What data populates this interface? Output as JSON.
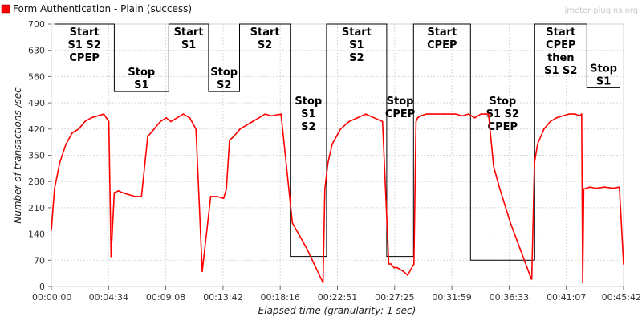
{
  "watermark": "jmeter-plugins.org",
  "chart_data": {
    "type": "line",
    "title": "",
    "xlabel": "Elapsed time (granularity: 1 sec)",
    "ylabel": "Number of transactions /sec",
    "xlim": [
      0,
      2730
    ],
    "ylim": [
      0,
      700
    ],
    "grid": true,
    "legend_position": "top-left",
    "x_ticks": [
      "00:00:00",
      "00:04:34",
      "00:09:08",
      "00:13:42",
      "00:18:16",
      "00:22:51",
      "00:27:25",
      "00:31:59",
      "00:36:33",
      "00:41:07",
      "00:45:42"
    ],
    "y_ticks": [
      0,
      70,
      140,
      210,
      280,
      350,
      420,
      490,
      560,
      630,
      700
    ],
    "series": [
      {
        "name": "Form Authentication - Plain (success)",
        "color": "#ff0000",
        "x": [
          0,
          15,
          40,
          70,
          100,
          130,
          160,
          190,
          220,
          250,
          274,
          285,
          300,
          320,
          340,
          370,
          400,
          430,
          460,
          490,
          520,
          548,
          570,
          600,
          630,
          660,
          690,
          720,
          760,
          790,
          822,
          835,
          850,
          870,
          900,
          930,
          960,
          990,
          1020,
          1050,
          1096,
          1150,
          1220,
          1296,
          1305,
          1320,
          1340,
          1380,
          1420,
          1460,
          1500,
          1540,
          1580,
          1610,
          1620,
          1635,
          1650,
          1680,
          1700,
          1730,
          1740,
          1748,
          1760,
          1790,
          1830,
          1870,
          1900,
          1930,
          1960,
          1990,
          2020,
          2050,
          2086,
          2110,
          2140,
          2190,
          2290,
          2292,
          2305,
          2320,
          2350,
          2380,
          2410,
          2440,
          2470,
          2500,
          2520,
          2530,
          2535,
          2540,
          2570,
          2600,
          2640,
          2680,
          2710,
          2730
        ],
        "y": [
          150,
          260,
          330,
          380,
          410,
          420,
          440,
          450,
          455,
          460,
          440,
          80,
          250,
          255,
          250,
          245,
          240,
          240,
          400,
          420,
          440,
          450,
          440,
          450,
          460,
          450,
          420,
          40,
          240,
          240,
          235,
          260,
          390,
          400,
          420,
          430,
          440,
          450,
          460,
          455,
          460,
          170,
          100,
          10,
          260,
          330,
          380,
          420,
          440,
          450,
          460,
          450,
          440,
          60,
          60,
          50,
          50,
          40,
          30,
          60,
          440,
          450,
          455,
          460,
          460,
          460,
          460,
          460,
          455,
          460,
          450,
          460,
          460,
          320,
          260,
          170,
          20,
          20,
          330,
          380,
          420,
          440,
          450,
          455,
          460,
          460,
          455,
          460,
          10,
          260,
          265,
          262,
          265,
          262,
          265,
          60
        ]
      }
    ],
    "annotations": [
      {
        "lines": [
          "Start",
          "S1 S2",
          "CPEP"
        ],
        "x_start": 15,
        "x_end": 300,
        "y_top": 700,
        "y_bottom": 700
      },
      {
        "lines": [
          "Stop",
          "S1"
        ],
        "x_start": 300,
        "x_end": 560,
        "y_top": 520,
        "y_bottom": 520
      },
      {
        "lines": [
          "Start",
          "S1"
        ],
        "x_start": 560,
        "x_end": 750,
        "y_top": 700,
        "y_bottom": 700
      },
      {
        "lines": [
          "Stop",
          "S2"
        ],
        "x_start": 750,
        "x_end": 898,
        "y_top": 520,
        "y_bottom": 520
      },
      {
        "lines": [
          "Start",
          "S2"
        ],
        "x_start": 898,
        "x_end": 1140,
        "y_top": 700,
        "y_bottom": 700
      },
      {
        "lines": [
          "Stop",
          "S1",
          "S2"
        ],
        "x_start": 1140,
        "x_end": 1313,
        "y_top": 80,
        "y_bottom": 80
      },
      {
        "lines": [
          "Start",
          "S1",
          "S2"
        ],
        "x_start": 1313,
        "x_end": 1600,
        "y_top": 700,
        "y_bottom": 700
      },
      {
        "lines": [
          "Stop",
          "CPEP"
        ],
        "x_start": 1600,
        "x_end": 1728,
        "y_top": 80,
        "y_bottom": 80
      },
      {
        "lines": [
          "Start",
          "CPEP"
        ],
        "x_start": 1728,
        "x_end": 2000,
        "y_top": 700,
        "y_bottom": 700
      },
      {
        "lines": [
          "Stop",
          "S1 S2",
          "CPEP"
        ],
        "x_start": 2000,
        "x_end": 2306,
        "y_top": 70,
        "y_bottom": 70
      },
      {
        "lines": [
          "Start",
          "CPEP",
          "then",
          "S1 S2"
        ],
        "x_start": 2306,
        "x_end": 2555,
        "y_top": 700,
        "y_bottom": 700
      },
      {
        "lines": [
          "Stop",
          "S1"
        ],
        "x_start": 2555,
        "x_end": 2714,
        "y_top": 530,
        "y_bottom": 530
      }
    ]
  }
}
